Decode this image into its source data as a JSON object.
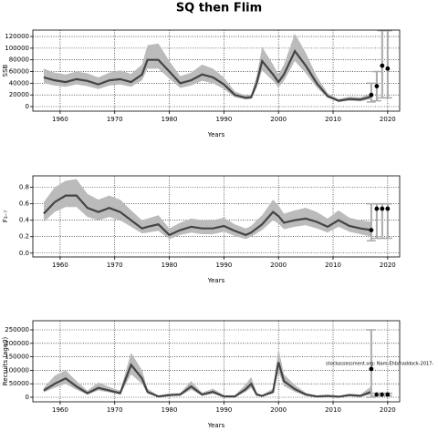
{
  "title": "SQ then Flim",
  "chart_data": [
    {
      "type": "line",
      "xlabel": "Years",
      "ylabel": "SSB",
      "x": [
        1957,
        1959,
        1961,
        1963,
        1965,
        1967,
        1969,
        1971,
        1973,
        1975,
        1976,
        1978,
        1980,
        1982,
        1984,
        1986,
        1988,
        1990,
        1992,
        1994,
        1995,
        1996,
        1997,
        1999,
        2000,
        2001,
        2003,
        2005,
        2007,
        2009,
        2011,
        2013,
        2015,
        2017
      ],
      "values": [
        50000,
        45000,
        42000,
        47000,
        44000,
        38000,
        45000,
        47000,
        42000,
        55000,
        80000,
        80000,
        60000,
        40000,
        45000,
        55000,
        50000,
        38000,
        20000,
        15000,
        16000,
        40000,
        78000,
        55000,
        42000,
        55000,
        95000,
        70000,
        40000,
        18000,
        10000,
        13000,
        12000,
        17000
      ],
      "lower": [
        40000,
        36000,
        34000,
        38000,
        35000,
        30000,
        36000,
        38000,
        34000,
        45000,
        65000,
        65000,
        48000,
        32000,
        36000,
        44000,
        40000,
        30000,
        16000,
        12000,
        13000,
        32000,
        62000,
        44000,
        33000,
        44000,
        78000,
        57000,
        33000,
        15000,
        8000,
        10000,
        9000,
        13000
      ],
      "upper": [
        65000,
        58000,
        55000,
        60000,
        57000,
        50000,
        58000,
        62000,
        56000,
        72000,
        105000,
        108000,
        78000,
        52000,
        58000,
        72000,
        65000,
        50000,
        26000,
        19000,
        21000,
        52000,
        102000,
        72000,
        55000,
        72000,
        125000,
        92000,
        52000,
        23000,
        13000,
        17000,
        16000,
        22000
      ],
      "color": "#444444",
      "band_color": "#bbbbbb",
      "errorbar_color": "#aaaaaa",
      "forecast": {
        "x": [
          2017,
          2018,
          2019,
          2020
        ],
        "values": [
          20000,
          35000,
          70000,
          65000
        ],
        "low": [
          8000,
          10000,
          15000,
          15000
        ],
        "high": [
          40000,
          60000,
          130000,
          130000
        ]
      },
      "xlim": [
        1955,
        2022.2
      ],
      "ylim": [
        -7800,
        131000
      ],
      "xticks": [
        1960,
        1970,
        1980,
        1990,
        2000,
        2010,
        2020
      ],
      "yticks": [
        0,
        20000,
        40000,
        60000,
        80000,
        100000,
        120000
      ],
      "grid": true
    },
    {
      "type": "line",
      "xlabel": "Years",
      "ylabel": "F₃₋₇",
      "x": [
        1957,
        1959,
        1961,
        1963,
        1965,
        1967,
        1969,
        1971,
        1973,
        1975,
        1976,
        1978,
        1980,
        1982,
        1984,
        1986,
        1988,
        1990,
        1992,
        1994,
        1995,
        1996,
        1997,
        1999,
        2000,
        2001,
        2003,
        2005,
        2007,
        2009,
        2011,
        2013,
        2015,
        2017
      ],
      "values": [
        0.48,
        0.62,
        0.7,
        0.7,
        0.55,
        0.5,
        0.55,
        0.5,
        0.4,
        0.3,
        0.32,
        0.35,
        0.22,
        0.28,
        0.32,
        0.3,
        0.3,
        0.33,
        0.27,
        0.22,
        0.25,
        0.3,
        0.35,
        0.5,
        0.45,
        0.37,
        0.4,
        0.42,
        0.38,
        0.32,
        0.4,
        0.33,
        0.3,
        0.28
      ],
      "lower": [
        0.38,
        0.5,
        0.56,
        0.56,
        0.44,
        0.4,
        0.44,
        0.4,
        0.32,
        0.24,
        0.25,
        0.27,
        0.17,
        0.22,
        0.25,
        0.23,
        0.23,
        0.26,
        0.21,
        0.17,
        0.2,
        0.24,
        0.28,
        0.4,
        0.36,
        0.29,
        0.32,
        0.34,
        0.3,
        0.25,
        0.32,
        0.26,
        0.23,
        0.2
      ],
      "upper": [
        0.62,
        0.8,
        0.88,
        0.9,
        0.72,
        0.65,
        0.7,
        0.65,
        0.52,
        0.4,
        0.42,
        0.46,
        0.3,
        0.37,
        0.42,
        0.4,
        0.4,
        0.43,
        0.35,
        0.3,
        0.33,
        0.4,
        0.46,
        0.65,
        0.58,
        0.48,
        0.52,
        0.55,
        0.5,
        0.42,
        0.52,
        0.43,
        0.4,
        0.38
      ],
      "color": "#444444",
      "band_color": "#bbbbbb",
      "errorbar_color": "#aaaaaa",
      "forecast": {
        "x": [
          2017,
          2018,
          2019,
          2020
        ],
        "values": [
          0.28,
          0.54,
          0.54,
          0.54
        ],
        "low": [
          0.15,
          0.18,
          0.18,
          0.18
        ],
        "high": [
          0.6,
          0.6,
          0.6,
          0.6
        ]
      },
      "xlim": [
        1955,
        2022.2
      ],
      "ylim": [
        -0.047,
        0.94
      ],
      "xticks": [
        1960,
        1970,
        1980,
        1990,
        2000,
        2010,
        2020
      ],
      "yticks": [
        {
          "value": 0,
          "label": "0.0"
        },
        0.2,
        0.4,
        0.6,
        0.8
      ],
      "grid": true
    },
    {
      "type": "line",
      "xlabel": "Years",
      "ylabel": "Recruits (age0)",
      "annotation": "stockassessment.org: Nam-Ehb/haddock-2017-",
      "x": [
        1957,
        1959,
        1961,
        1963,
        1965,
        1967,
        1969,
        1971,
        1973,
        1975,
        1976,
        1978,
        1980,
        1982,
        1984,
        1986,
        1988,
        1990,
        1992,
        1994,
        1995,
        1996,
        1997,
        1999,
        2000,
        2001,
        2003,
        2005,
        2007,
        2009,
        2011,
        2013,
        2015,
        2017
      ],
      "values": [
        25000,
        50000,
        70000,
        40000,
        15000,
        35000,
        25000,
        15000,
        120000,
        70000,
        20000,
        3000,
        8000,
        10000,
        40000,
        10000,
        20000,
        3000,
        3000,
        30000,
        50000,
        10000,
        5000,
        20000,
        130000,
        60000,
        30000,
        10000,
        3000,
        5000,
        2000,
        8000,
        5000,
        20000
      ],
      "lower": [
        18000,
        35000,
        50000,
        28000,
        10000,
        25000,
        18000,
        10000,
        85000,
        50000,
        13000,
        1000,
        5000,
        6000,
        28000,
        6000,
        13000,
        1000,
        1000,
        20000,
        35000,
        6000,
        3000,
        13000,
        95000,
        42000,
        20000,
        6000,
        1000,
        3000,
        1000,
        5000,
        3000,
        10000
      ],
      "upper": [
        35000,
        80000,
        100000,
        60000,
        25000,
        55000,
        38000,
        24000,
        165000,
        100000,
        32000,
        6000,
        14000,
        16000,
        60000,
        17000,
        32000,
        7000,
        7000,
        48000,
        75000,
        17000,
        9000,
        32000,
        180000,
        85000,
        45000,
        17000,
        6000,
        9000,
        4000,
        13000,
        10000,
        40000
      ],
      "color": "#444444",
      "band_color": "#bbbbbb",
      "errorbar_color": "#aaaaaa",
      "forecast": {
        "x": [
          2017,
          2018,
          2019,
          2020
        ],
        "values": [
          105000,
          10000,
          10000,
          10000
        ],
        "low": [
          0,
          5000,
          5000,
          5000
        ],
        "high": [
          250000,
          15000,
          15000,
          15000
        ]
      },
      "xlim": [
        1955,
        2022.2
      ],
      "ylim": [
        -16900,
        283800
      ],
      "xticks": [
        1960,
        1970,
        1980,
        1990,
        2000,
        2010,
        2020
      ],
      "yticks": [
        0,
        50000,
        100000,
        150000,
        200000,
        250000
      ],
      "grid": true
    }
  ]
}
